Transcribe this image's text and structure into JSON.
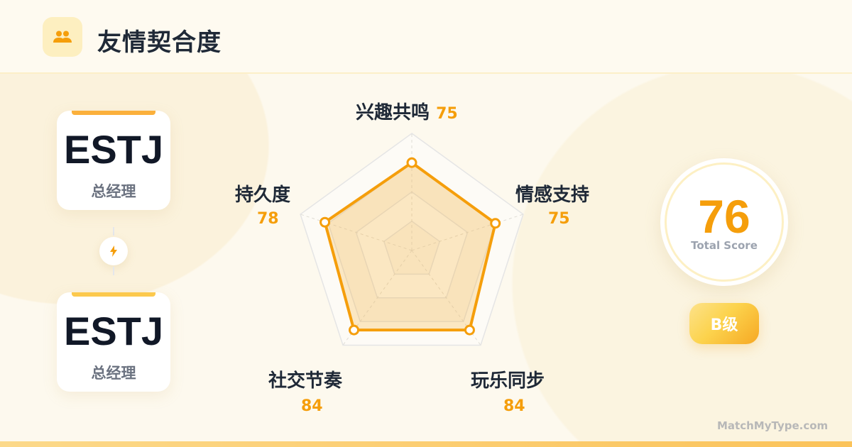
{
  "header": {
    "title": "友情契合度",
    "icon": "users-icon"
  },
  "people": [
    {
      "mbti": "ESTJ",
      "role": "总经理"
    },
    {
      "mbti": "ESTJ",
      "role": "总经理"
    }
  ],
  "connector_icon": "lightning-icon",
  "chart_data": {
    "type": "radar",
    "categories": [
      "兴趣共鸣",
      "情感支持",
      "玩乐同步",
      "社交节奏",
      "持久度"
    ],
    "values": [
      75,
      75,
      84,
      84,
      78
    ],
    "range": [
      0,
      100
    ],
    "color": "#f59e0b"
  },
  "score": {
    "value": "76",
    "label": "Total Score"
  },
  "grade": "B级",
  "brand": "MatchMyType.com"
}
